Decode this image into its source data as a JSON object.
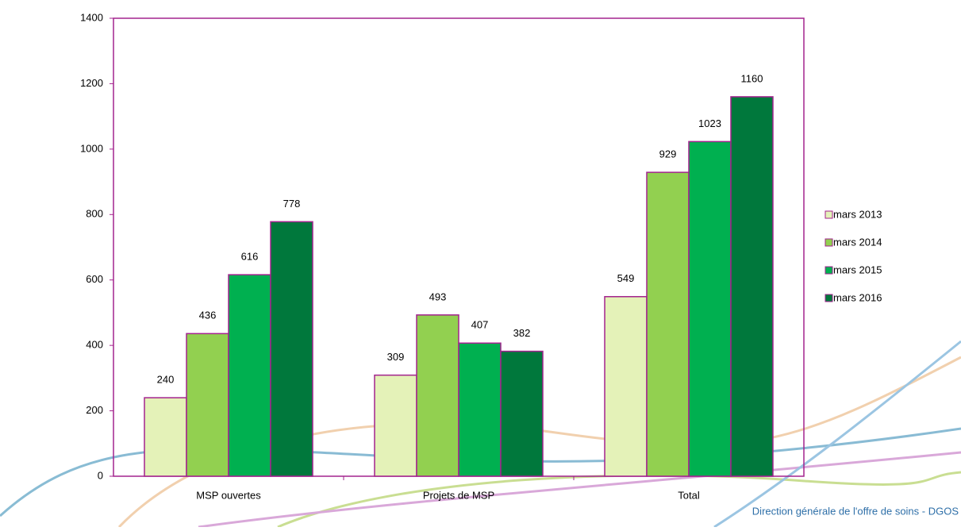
{
  "chart_data": {
    "type": "bar",
    "categories": [
      "MSP ouvertes",
      "Projets de MSP",
      "Total"
    ],
    "series": [
      {
        "name": "mars 2013",
        "color": "#e4f2b8",
        "values": [
          240,
          309,
          549
        ]
      },
      {
        "name": "mars 2014",
        "color": "#92d050",
        "values": [
          436,
          493,
          929
        ]
      },
      {
        "name": "mars 2015",
        "color": "#00b050",
        "values": [
          616,
          407,
          1023
        ]
      },
      {
        "name": "mars 2016",
        "color": "#00783c",
        "values": [
          778,
          382,
          1160
        ]
      }
    ],
    "ylim": [
      0,
      1400
    ],
    "yticks": [
      0,
      200,
      400,
      600,
      800,
      1000,
      1200,
      1400
    ],
    "grid": false,
    "legend": "right"
  },
  "footer": "Direction générale de l'offre de soins - DGOS"
}
